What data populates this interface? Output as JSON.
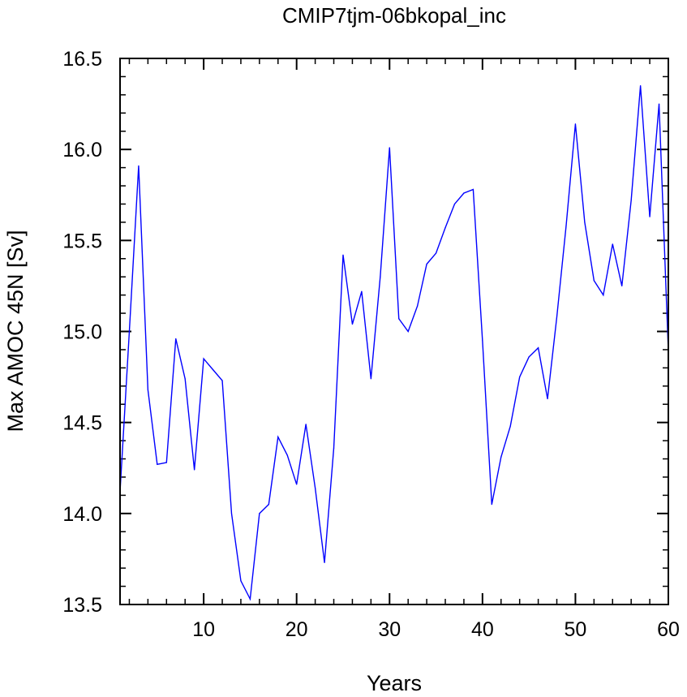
{
  "chart_data": {
    "type": "line",
    "title": "CMIP7tjm-06bkopal_inc",
    "xlabel": "Years",
    "ylabel": "Max AMOC 45N [Sv]",
    "xlim": [
      1,
      60
    ],
    "ylim": [
      13.5,
      16.5
    ],
    "x_ticks": [
      10,
      20,
      30,
      40,
      50,
      60
    ],
    "y_ticks": [
      "13.5",
      "14.0",
      "14.5",
      "15.0",
      "15.5",
      "16.0",
      "16.5"
    ],
    "grid": false,
    "series": [
      {
        "color": "#0000ff",
        "x": [
          1,
          2,
          3,
          4,
          5,
          6,
          7,
          8,
          9,
          10,
          11,
          12,
          13,
          14,
          15,
          16,
          17,
          18,
          19,
          20,
          21,
          22,
          23,
          24,
          25,
          26,
          27,
          28,
          29,
          30,
          31,
          32,
          33,
          34,
          35,
          36,
          37,
          38,
          39,
          40,
          41,
          42,
          43,
          44,
          45,
          46,
          47,
          48,
          49,
          50,
          51,
          52,
          53,
          54,
          55,
          56,
          57,
          58,
          59,
          60
        ],
        "values": [
          14.12,
          15.0,
          15.91,
          14.68,
          14.27,
          14.28,
          14.96,
          14.74,
          14.24,
          14.85,
          14.79,
          14.73,
          14.0,
          13.63,
          13.53,
          14.0,
          14.05,
          14.42,
          14.32,
          14.16,
          14.49,
          14.14,
          13.73,
          14.36,
          15.42,
          15.04,
          15.22,
          14.74,
          15.3,
          16.01,
          15.07,
          15.0,
          15.14,
          15.37,
          15.43,
          15.57,
          15.7,
          15.76,
          15.78,
          14.95,
          14.05,
          14.31,
          14.48,
          14.75,
          14.86,
          14.91,
          14.63,
          15.08,
          15.58,
          16.14,
          15.6,
          15.28,
          15.2,
          15.48,
          15.25,
          15.72,
          16.35,
          15.63,
          16.25,
          14.89
        ]
      }
    ]
  }
}
